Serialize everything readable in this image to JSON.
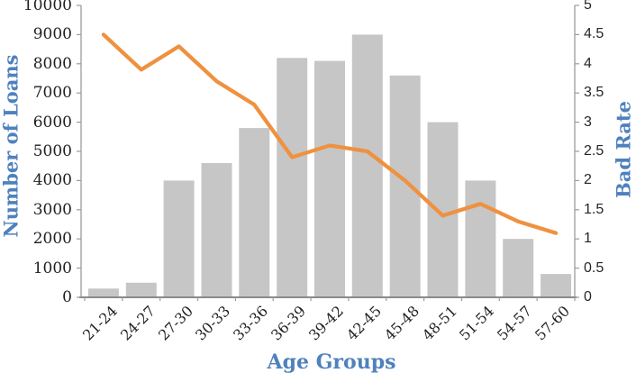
{
  "chart_data": {
    "type": "bar",
    "subtype": "combo-bar-line",
    "title": "",
    "categories": [
      "21-24",
      "24-27",
      "27-30",
      "30-33",
      "33-36",
      "36-39",
      "39-42",
      "42-45",
      "45-48",
      "48-51",
      "51-54",
      "54-57",
      "57-60"
    ],
    "series": [
      {
        "name": "Number of Loans",
        "type": "bar",
        "axis": "left",
        "color": "#c6c6c6",
        "values": [
          300,
          500,
          4000,
          4600,
          5800,
          8200,
          8100,
          9000,
          7600,
          6000,
          4000,
          2000,
          800
        ]
      },
      {
        "name": "Bad Rate",
        "type": "line",
        "axis": "right",
        "color": "#ef913f",
        "values": [
          4.5,
          3.9,
          4.3,
          3.7,
          3.3,
          2.4,
          2.6,
          2.5,
          2.0,
          1.4,
          1.6,
          1.3,
          1.1
        ]
      }
    ],
    "left_axis": {
      "title": "Number of Loans",
      "min": 0,
      "max": 10000,
      "step": 1000,
      "tick_labels": [
        "0",
        "1000",
        "2000",
        "3000",
        "4000",
        "5000",
        "6000",
        "7000",
        "8000",
        "9000",
        "10000"
      ]
    },
    "right_axis": {
      "title": "Bad Rate",
      "min": 0,
      "max": 5,
      "step": 0.5,
      "tick_labels": [
        "0",
        "0.5",
        "1",
        "1.5",
        "2",
        "2.5",
        "3",
        "3.5",
        "4",
        "4.5",
        "5"
      ]
    },
    "x_axis": {
      "title": "Age Groups"
    },
    "grid": false,
    "legend": "none",
    "colors": {
      "axis_title_blue": "#4f81bd",
      "tick_text": "#1f1f1f",
      "axis_line": "#9b9b9b",
      "bottom_axis_line": "#8a8a8a",
      "bar_fill": "#c6c6c6",
      "line_stroke": "#ef913f",
      "background": "#ffffff"
    }
  }
}
